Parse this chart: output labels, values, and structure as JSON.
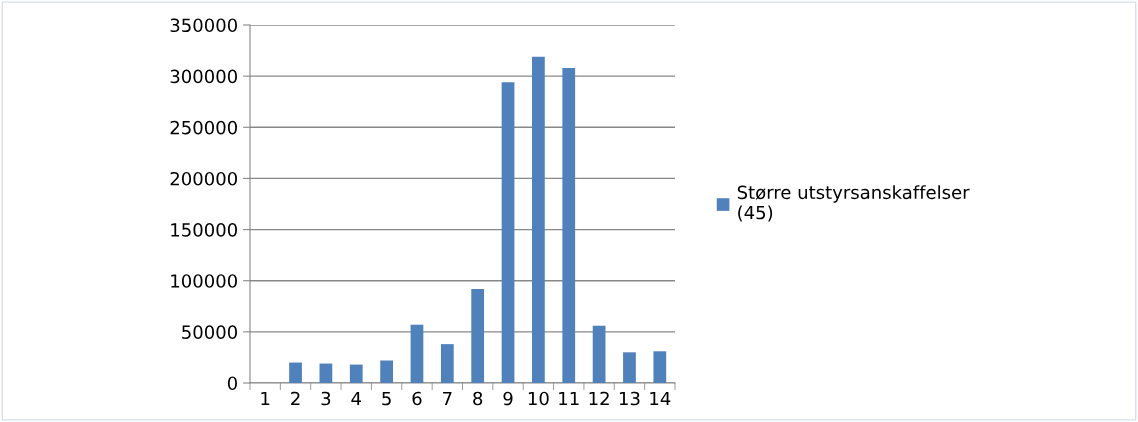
{
  "chart_data": {
    "type": "bar",
    "categories": [
      "1",
      "2",
      "3",
      "4",
      "5",
      "6",
      "7",
      "8",
      "9",
      "10",
      "11",
      "12",
      "13",
      "14"
    ],
    "series": [
      {
        "name": "Større utstyrsanskaffelser\n(45)",
        "color": "#4f81bd",
        "values": [
          0,
          20000,
          19000,
          18000,
          22000,
          57000,
          38000,
          92000,
          294000,
          319000,
          308000,
          56000,
          30000,
          31000
        ]
      }
    ],
    "ylim": [
      0,
      350000
    ],
    "yticks": [
      0,
      50000,
      100000,
      150000,
      200000,
      250000,
      300000,
      350000
    ],
    "grid": "y",
    "legend": "right"
  }
}
